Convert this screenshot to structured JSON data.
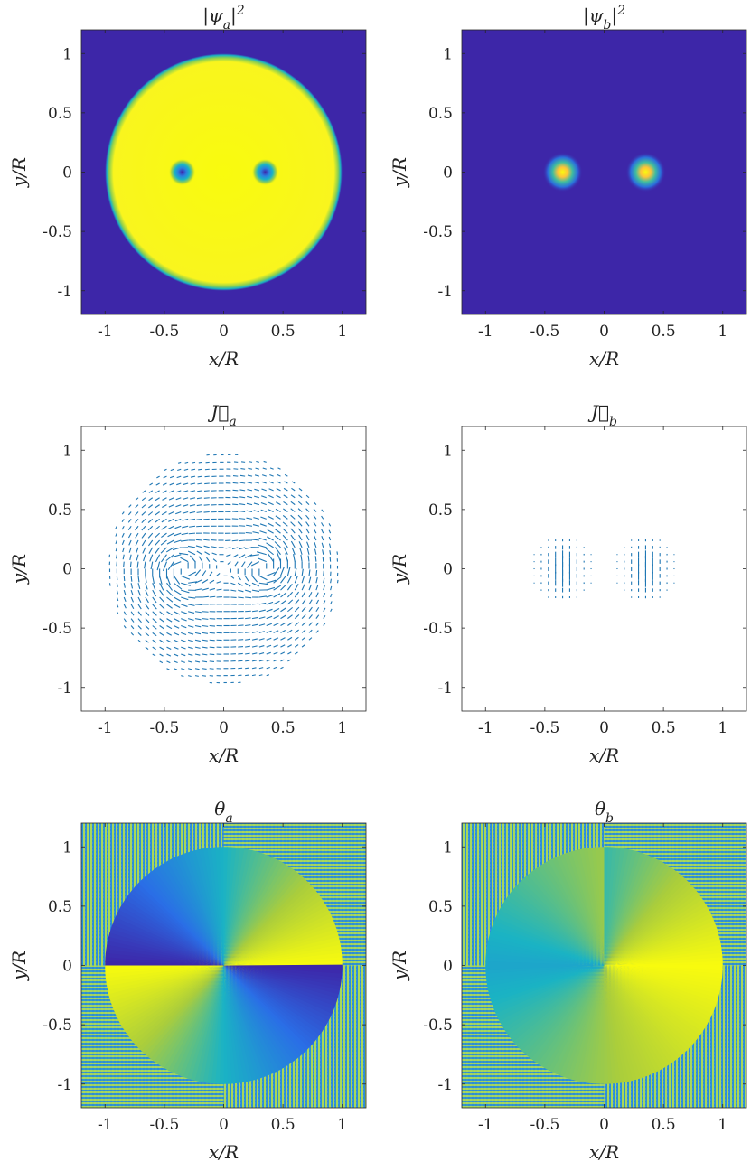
{
  "figure": {
    "panels": [
      {
        "id": "psi_a",
        "title": "|ψa|²",
        "title_main": "|ψ",
        "title_sub": "a",
        "title_tail": "|",
        "title_sup": "2",
        "kind": "density",
        "xlabel": "x/R",
        "ylabel": "y/R",
        "vortices": [
          -0.35,
          0.35
        ]
      },
      {
        "id": "psi_b",
        "title": "|ψb|²",
        "title_main": "|ψ",
        "title_sub": "b",
        "title_tail": "|",
        "title_sup": "2",
        "kind": "density-cores",
        "xlabel": "x/R",
        "ylabel": "y/R",
        "vortices": [
          -0.35,
          0.35
        ]
      },
      {
        "id": "J_a",
        "title": "J⃗a",
        "title_main": "J⃗",
        "title_sub": "a",
        "title_tail": "",
        "title_sup": "",
        "kind": "current-a",
        "xlabel": "x/R",
        "ylabel": "y/R",
        "vortices": [
          -0.35,
          0.35
        ]
      },
      {
        "id": "J_b",
        "title": "J⃗b",
        "title_main": "J⃗",
        "title_sub": "b",
        "title_tail": "",
        "title_sup": "",
        "kind": "current-b",
        "xlabel": "x/R",
        "ylabel": "y/R",
        "vortices": [
          -0.35,
          0.35
        ]
      },
      {
        "id": "theta_a",
        "title": "θa",
        "title_main": "θ",
        "title_sub": "a",
        "title_tail": "",
        "title_sup": "",
        "kind": "phase-a",
        "xlabel": "x/R",
        "ylabel": "y/R",
        "vortices": [
          -0.35,
          0.35
        ]
      },
      {
        "id": "theta_b",
        "title": "θb",
        "title_main": "θ",
        "title_sub": "b",
        "title_tail": "",
        "title_sup": "",
        "kind": "phase-b",
        "xlabel": "x/R",
        "ylabel": "y/R",
        "vortices": [
          -0.35,
          0.35
        ]
      }
    ],
    "colormap": {
      "low": "#3d26a8",
      "mid": "#1ab3c4",
      "high": "#f9fb0e"
    },
    "arrow_color": "#1f77b4"
  },
  "chart_data": [
    {
      "type": "heatmap",
      "title": "|ψa|²",
      "xlabel": "x/R",
      "ylabel": "y/R",
      "xlim": [
        -1.2,
        1.2
      ],
      "ylim": [
        -1.2,
        1.2
      ],
      "xticks": [
        -1,
        -0.5,
        0,
        0.5,
        1
      ],
      "yticks": [
        -1,
        -0.5,
        0,
        0.5,
        1
      ],
      "xticklabels": [
        "-1",
        "-0.5",
        "0",
        "0.5",
        "1"
      ],
      "yticklabels": [
        "-1",
        "-0.5",
        "0",
        "0.5",
        "1"
      ],
      "disk_radius": 1.0,
      "vortex_cores_x": [
        -0.35,
        0.35
      ],
      "vortex_cores_y": [
        0,
        0
      ],
      "grid": false
    },
    {
      "type": "heatmap",
      "title": "|ψb|²",
      "xlabel": "x/R",
      "ylabel": "y/R",
      "xlim": [
        -1.2,
        1.2
      ],
      "ylim": [
        -1.2,
        1.2
      ],
      "xticks": [
        -1,
        -0.5,
        0,
        0.5,
        1
      ],
      "yticks": [
        -1,
        -0.5,
        0,
        0.5,
        1
      ],
      "xticklabels": [
        "-1",
        "-0.5",
        "0",
        "0.5",
        "1"
      ],
      "yticklabels": [
        "-1",
        "-0.5",
        "0",
        "0.5",
        "1"
      ],
      "peaks_x": [
        -0.35,
        0.35
      ],
      "peaks_y": [
        0,
        0
      ],
      "grid": false
    },
    {
      "type": "quiver",
      "title": "J⃗a",
      "xlabel": "x/R",
      "ylabel": "y/R",
      "xlim": [
        -1.2,
        1.2
      ],
      "ylim": [
        -1.2,
        1.2
      ],
      "xticks": [
        -1,
        -0.5,
        0,
        0.5,
        1
      ],
      "yticks": [
        -1,
        -0.5,
        0,
        0.5,
        1
      ],
      "xticklabels": [
        "-1",
        "-0.5",
        "0",
        "0.5",
        "1"
      ],
      "yticklabels": [
        "-1",
        "-0.5",
        "0",
        "0.5",
        "1"
      ],
      "vortex_cores_x": [
        -0.35,
        0.35
      ],
      "vortex_cores_y": [
        0,
        0
      ],
      "disk_radius": 1.0,
      "grid": false
    },
    {
      "type": "quiver",
      "title": "J⃗b",
      "xlabel": "x/R",
      "ylabel": "y/R",
      "xlim": [
        -1.2,
        1.2
      ],
      "ylim": [
        -1.2,
        1.2
      ],
      "xticks": [
        -1,
        -0.5,
        0,
        0.5,
        1
      ],
      "yticks": [
        -1,
        -0.5,
        0,
        0.5,
        1
      ],
      "xticklabels": [
        "-1",
        "-0.5",
        "0",
        "0.5",
        "1"
      ],
      "yticklabels": [
        "-1",
        "-0.5",
        "0",
        "0.5",
        "1"
      ],
      "cores_x": [
        -0.35,
        0.35
      ],
      "cores_y": [
        0,
        0
      ],
      "grid": false
    },
    {
      "type": "heatmap",
      "title": "θa",
      "xlabel": "x/R",
      "ylabel": "y/R",
      "xlim": [
        -1.2,
        1.2
      ],
      "ylim": [
        -1.2,
        1.2
      ],
      "xticks": [
        -1,
        -0.5,
        0,
        0.5,
        1
      ],
      "yticks": [
        -1,
        -0.5,
        0,
        0.5,
        1
      ],
      "xticklabels": [
        "-1",
        "-0.5",
        "0",
        "0.5",
        "1"
      ],
      "yticklabels": [
        "-1",
        "-0.5",
        "0",
        "0.5",
        "1"
      ],
      "disk_radius": 1.0,
      "grid": false
    },
    {
      "type": "heatmap",
      "title": "θb",
      "xlabel": "x/R",
      "ylabel": "y/R",
      "xlim": [
        -1.2,
        1.2
      ],
      "ylim": [
        -1.2,
        1.2
      ],
      "xticks": [
        -1,
        -0.5,
        0,
        0.5,
        1
      ],
      "yticks": [
        -1,
        -0.5,
        0,
        0.5,
        1
      ],
      "xticklabels": [
        "-1",
        "-0.5",
        "0",
        "0.5",
        "1"
      ],
      "yticklabels": [
        "-1",
        "-0.5",
        "0",
        "0.5",
        "1"
      ],
      "disk_radius": 1.0,
      "grid": false
    }
  ]
}
